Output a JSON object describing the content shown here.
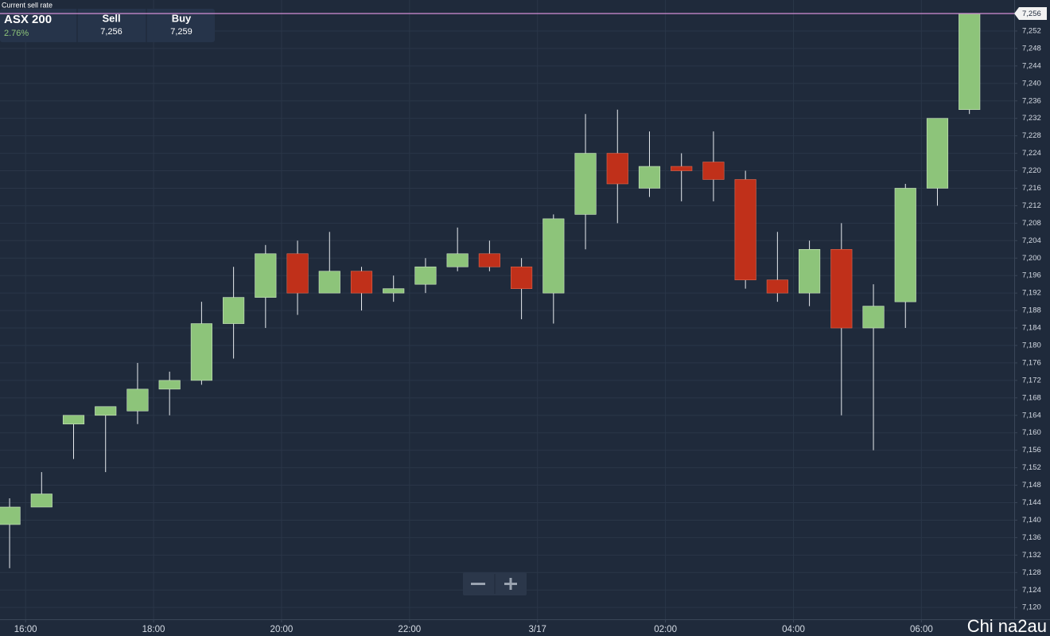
{
  "chart_data": {
    "type": "candlestick",
    "current_rate_label": "Current sell rate",
    "ticker": {
      "name": "ASX 200",
      "change": "2.76%",
      "sell_label": "Sell",
      "sell": "7,256",
      "buy_label": "Buy",
      "buy": "7,259"
    },
    "current_rate": {
      "value": 7256,
      "label": "7,256"
    },
    "watermark": "Chi na2au",
    "categories": [
      null,
      null,
      null,
      null,
      null,
      null,
      null,
      null,
      null,
      null,
      null,
      null,
      null,
      null,
      null,
      null,
      null,
      null,
      null,
      null,
      null,
      null,
      null,
      null,
      null,
      null,
      null,
      null,
      null,
      null,
      null
    ],
    "open": [
      7139,
      7143,
      7162,
      7164,
      7165,
      7170,
      7172,
      7185,
      7191,
      7201,
      7192,
      7197,
      7192,
      7194,
      7198,
      7201,
      7198,
      7192,
      7210,
      7224,
      7216,
      7221,
      7222,
      7218,
      7195,
      7192,
      7202,
      7184,
      7190,
      7216,
      7234
    ],
    "high": [
      7145,
      7151,
      7164,
      7166,
      7176,
      7174,
      7190,
      7198,
      7203,
      7204,
      7206,
      7198,
      7196,
      7200,
      7207,
      7204,
      7200,
      7210,
      7233,
      7234,
      7229,
      7224,
      7229,
      7220,
      7206,
      7204,
      7208,
      7194,
      7217,
      7232,
      7256
    ],
    "low": [
      7129,
      7143,
      7154,
      7151,
      7162,
      7164,
      7171,
      7177,
      7184,
      7187,
      7192,
      7188,
      7190,
      7192,
      7197,
      7197,
      7186,
      7185,
      7202,
      7208,
      7214,
      7213,
      7213,
      7193,
      7190,
      7189,
      7164,
      7156,
      7184,
      7212,
      7233
    ],
    "close": [
      7143,
      7146,
      7164,
      7166,
      7170,
      7172,
      7185,
      7191,
      7201,
      7192,
      7197,
      7192,
      7193,
      7198,
      7201,
      7198,
      7193,
      7209,
      7224,
      7217,
      7221,
      7220,
      7218,
      7195,
      7192,
      7202,
      7184,
      7189,
      7216,
      7232,
      7256
    ],
    "up_color": "#8dc47a",
    "down_color": "#c0301a",
    "rate_line_color": "#d48fd6",
    "xlim": [
      -0.3,
      31.4
    ],
    "xticks": [
      {
        "value": 0.5,
        "label": "16:00"
      },
      {
        "value": 4.5,
        "label": "18:00"
      },
      {
        "value": 8.5,
        "label": "20:00"
      },
      {
        "value": 12.5,
        "label": "22:00"
      },
      {
        "value": 16.5,
        "label": "3/17"
      },
      {
        "value": 20.5,
        "label": "02:00"
      },
      {
        "value": 24.5,
        "label": "04:00"
      },
      {
        "value": 28.5,
        "label": "06:00"
      }
    ],
    "ylim": [
      7117.3,
      7259.1
    ],
    "yticks": [
      {
        "value": 7120,
        "label": "7,120"
      },
      {
        "value": 7124,
        "label": "7,124"
      },
      {
        "value": 7128,
        "label": "7,128"
      },
      {
        "value": 7132,
        "label": "7,132"
      },
      {
        "value": 7136,
        "label": "7,136"
      },
      {
        "value": 7140,
        "label": "7,140"
      },
      {
        "value": 7144,
        "label": "7,144"
      },
      {
        "value": 7148,
        "label": "7,148"
      },
      {
        "value": 7152,
        "label": "7,152"
      },
      {
        "value": 7156,
        "label": "7,156"
      },
      {
        "value": 7160,
        "label": "7,160"
      },
      {
        "value": 7164,
        "label": "7,164"
      },
      {
        "value": 7168,
        "label": "7,168"
      },
      {
        "value": 7172,
        "label": "7,172"
      },
      {
        "value": 7176,
        "label": "7,176"
      },
      {
        "value": 7180,
        "label": "7,180"
      },
      {
        "value": 7184,
        "label": "7,184"
      },
      {
        "value": 7188,
        "label": "7,188"
      },
      {
        "value": 7192,
        "label": "7,192"
      },
      {
        "value": 7196,
        "label": "7,196"
      },
      {
        "value": 7200,
        "label": "7,200"
      },
      {
        "value": 7204,
        "label": "7,204"
      },
      {
        "value": 7208,
        "label": "7,208"
      },
      {
        "value": 7212,
        "label": "7,212"
      },
      {
        "value": 7216,
        "label": "7,216"
      },
      {
        "value": 7220,
        "label": "7,220"
      },
      {
        "value": 7224,
        "label": "7,224"
      },
      {
        "value": 7228,
        "label": "7,228"
      },
      {
        "value": 7232,
        "label": "7,232"
      },
      {
        "value": 7236,
        "label": "7,236"
      },
      {
        "value": 7240,
        "label": "7,240"
      },
      {
        "value": 7244,
        "label": "7,244"
      },
      {
        "value": 7248,
        "label": "7,248"
      },
      {
        "value": 7252,
        "label": "7,252"
      }
    ],
    "grid": true
  }
}
